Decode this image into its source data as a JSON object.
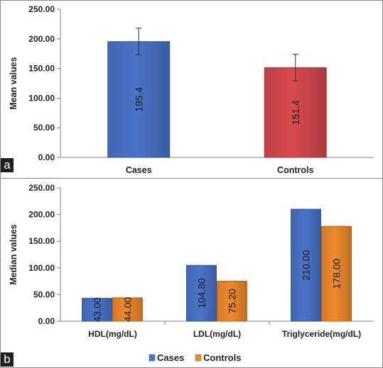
{
  "chart_data": [
    {
      "panel_label": "a",
      "type": "bar",
      "categories": [
        "Cases",
        "Controls"
      ],
      "values": [
        195.4,
        151.4
      ],
      "value_labels": [
        "195.4",
        "151.4"
      ],
      "error_bars": [
        [
          173,
          218
        ],
        [
          129,
          174
        ]
      ],
      "colors": [
        "#4a74c9",
        "#d94a4e"
      ],
      "ylabel": "Mean values",
      "ylim": [
        0,
        250
      ],
      "yticks": [
        "0.00",
        "50.00",
        "100.00",
        "150.00",
        "200.00",
        "250.00"
      ],
      "grid": false,
      "legend": "none"
    },
    {
      "panel_label": "b",
      "type": "bar",
      "categories": [
        "HDL(mg/dL)",
        "LDL(mg/dL)",
        "Triglyceride(mg/dL)"
      ],
      "series": [
        {
          "name": "Cases",
          "values": [
            43.0,
            104.8,
            210.0
          ],
          "value_labels": [
            "43.00",
            "104.80",
            "210.00"
          ],
          "color": "#4a74c9"
        },
        {
          "name": "Controls",
          "values": [
            44.0,
            75.2,
            178.0
          ],
          "value_labels": [
            "44.00",
            "75.20",
            "178.00"
          ],
          "color": "#ef8a2c"
        }
      ],
      "ylabel": "Median values",
      "ylim": [
        0,
        250
      ],
      "yticks": [
        "0.00",
        "50.00",
        "100.00",
        "150.00",
        "200.00",
        "250.00"
      ],
      "grid": false,
      "legend": "bottom"
    }
  ]
}
